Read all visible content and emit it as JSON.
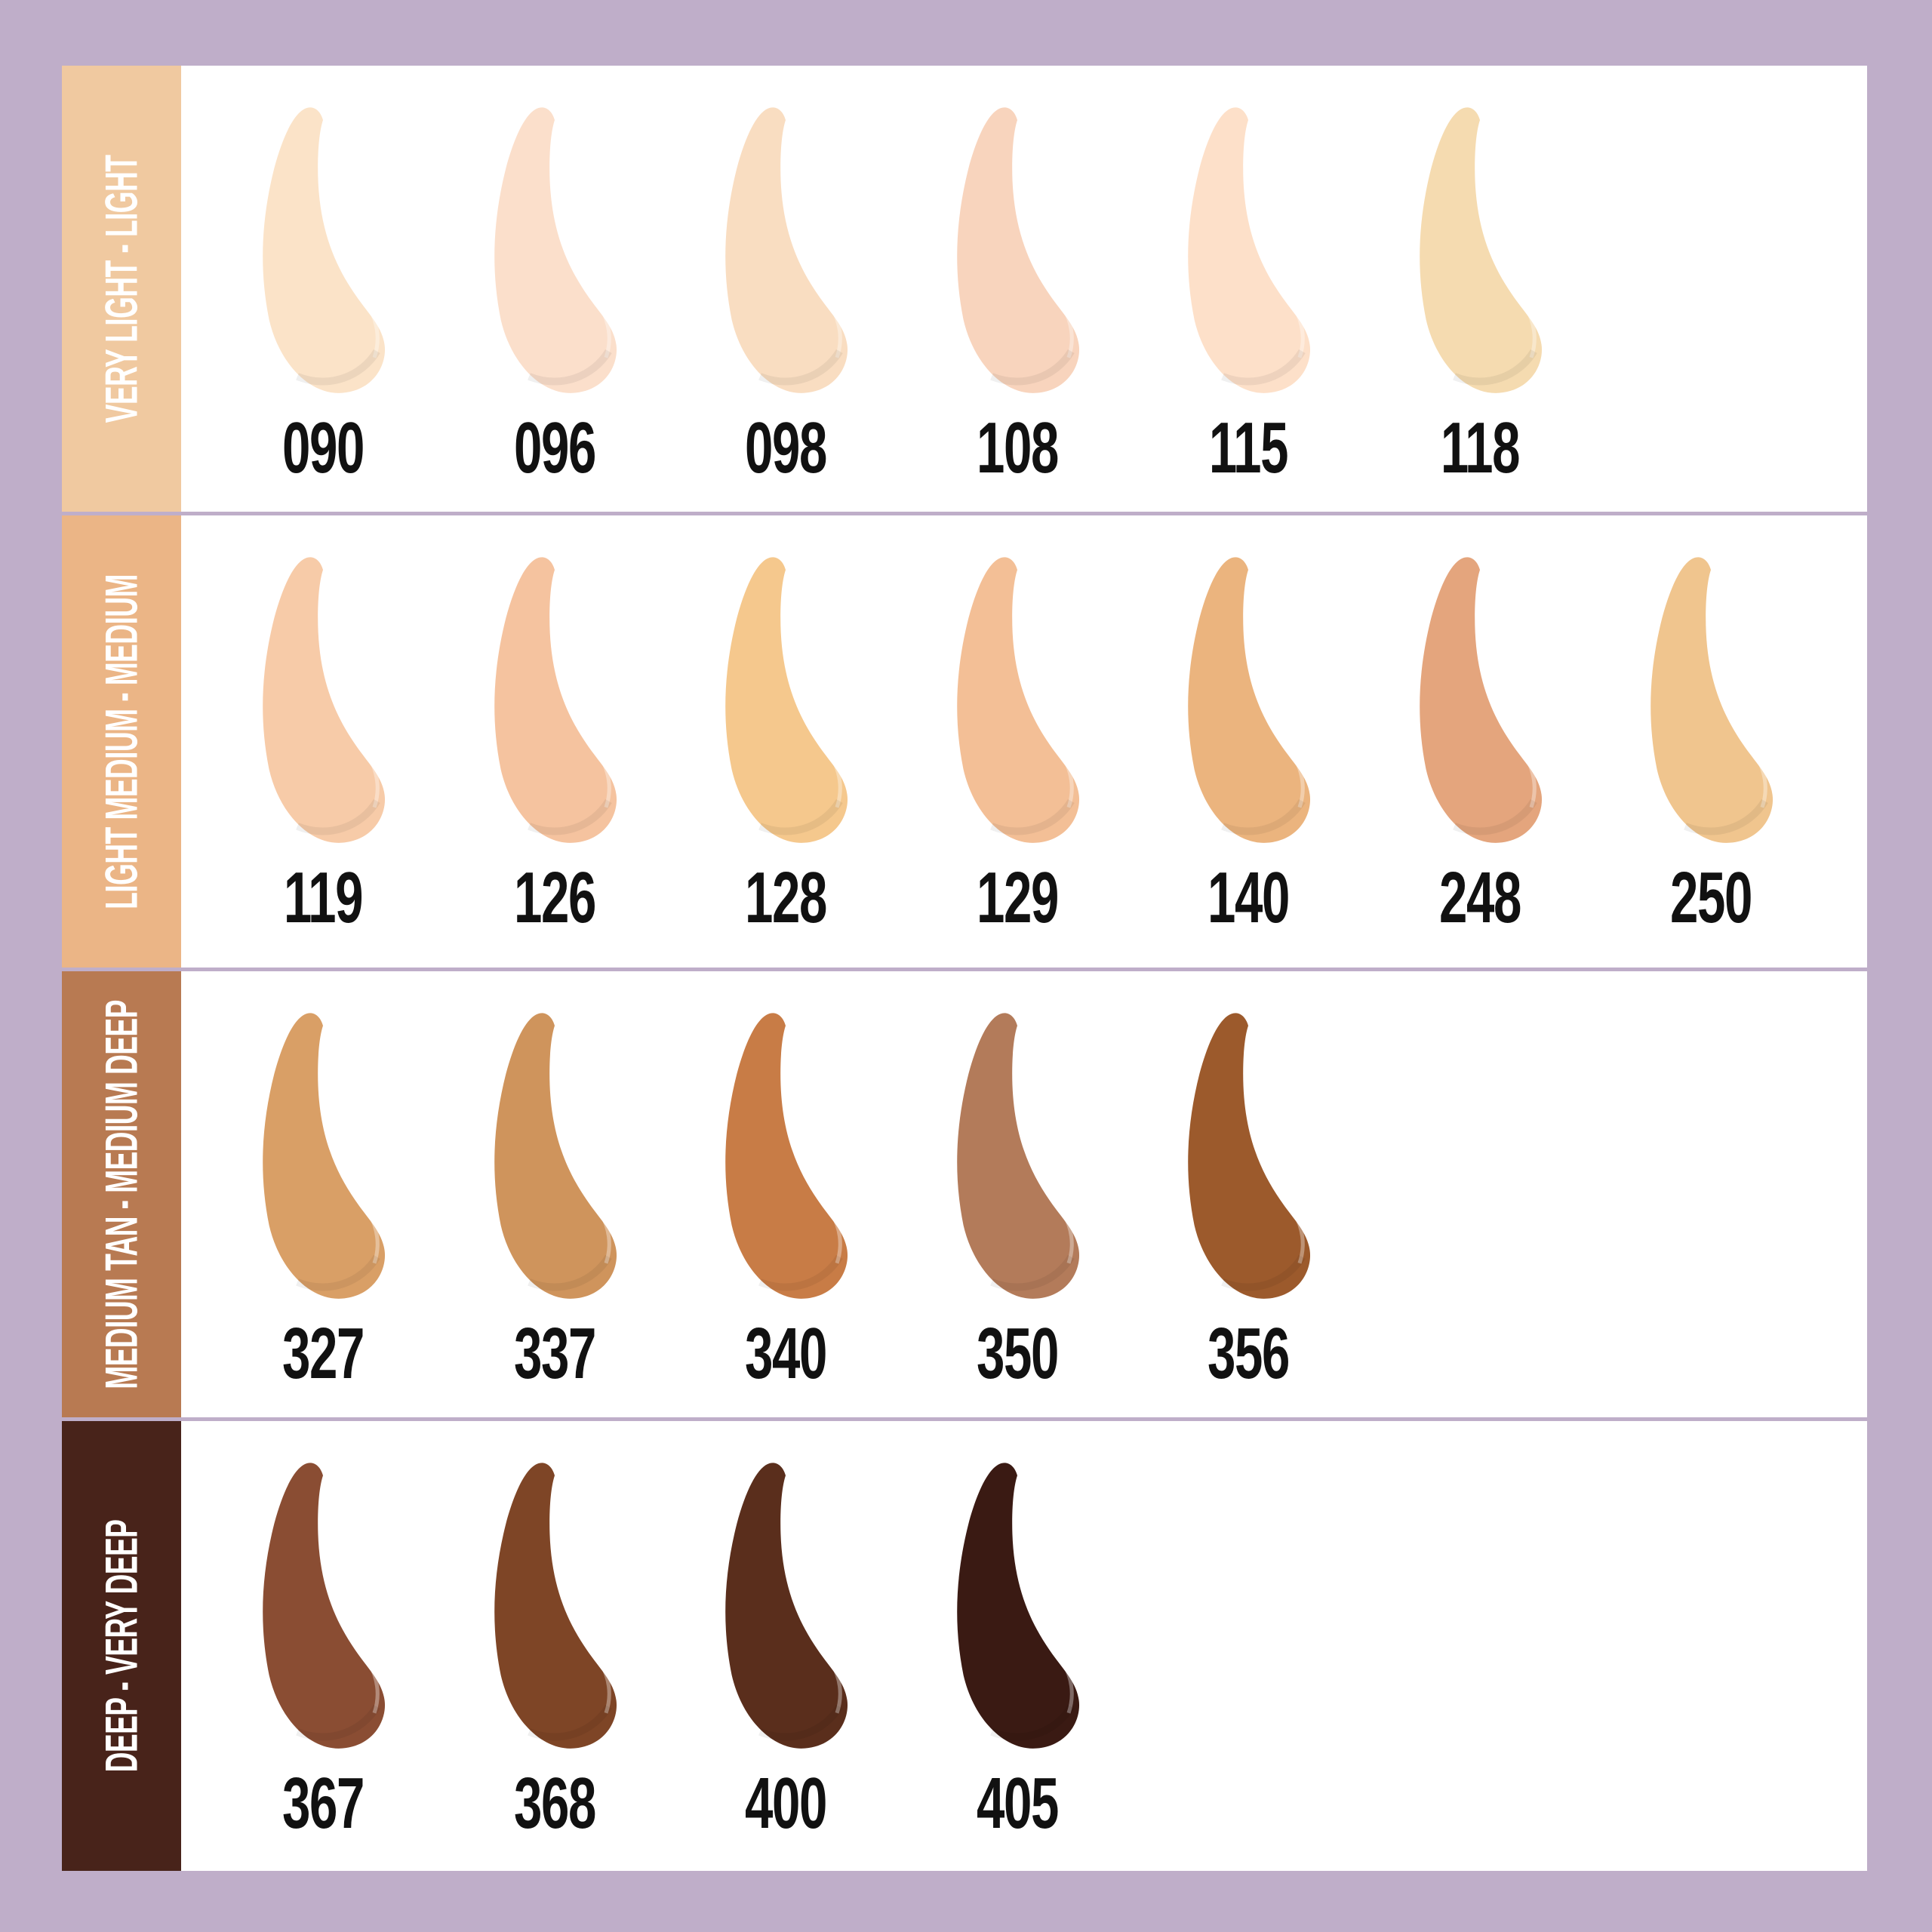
{
  "colors": {
    "background": "#bfaec9",
    "panel": "#ffffff",
    "text": "#111111"
  },
  "groups": [
    {
      "label": "VERY LIGHT - LIGHT",
      "color": "#f0c9a0",
      "shades": [
        {
          "code": "090",
          "color": "#fbe3c8"
        },
        {
          "code": "096",
          "color": "#fbdfcb"
        },
        {
          "code": "098",
          "color": "#f9ddc1"
        },
        {
          "code": "108",
          "color": "#f8d4bd"
        },
        {
          "code": "115",
          "color": "#fde0c9"
        },
        {
          "code": "118",
          "color": "#f5dbb0"
        }
      ]
    },
    {
      "label": "LIGHT MEDIUM - MEDIUM",
      "color": "#ebb586",
      "shades": [
        {
          "code": "119",
          "color": "#f7cba8"
        },
        {
          "code": "126",
          "color": "#f5c39f"
        },
        {
          "code": "128",
          "color": "#f5c88d"
        },
        {
          "code": "129",
          "color": "#f3bf96"
        },
        {
          "code": "140",
          "color": "#ebb47e"
        },
        {
          "code": "248",
          "color": "#e4a57d"
        },
        {
          "code": "250",
          "color": "#f0c58e"
        }
      ]
    },
    {
      "label": "MEDIUM TAN - MEDIUM DEEP",
      "color": "#b87a52",
      "shades": [
        {
          "code": "327",
          "color": "#d99f66"
        },
        {
          "code": "337",
          "color": "#cf945c"
        },
        {
          "code": "340",
          "color": "#c87c46"
        },
        {
          "code": "350",
          "color": "#b37b5a"
        },
        {
          "code": "356",
          "color": "#9c5a2c"
        }
      ]
    },
    {
      "label": "DEEP - VERY DEEP",
      "color": "#48231a",
      "shades": [
        {
          "code": "367",
          "color": "#8a4d33"
        },
        {
          "code": "368",
          "color": "#7e4526"
        },
        {
          "code": "400",
          "color": "#5a2e1c"
        },
        {
          "code": "405",
          "color": "#3a1a13"
        }
      ]
    }
  ]
}
